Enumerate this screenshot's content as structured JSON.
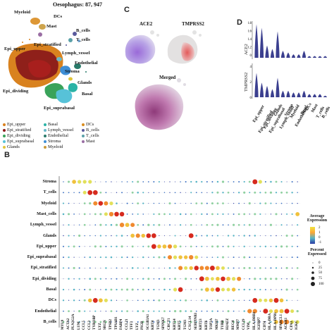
{
  "panel_a": {
    "title": "Oesophagus: 87, 947",
    "cluster_labels": [
      {
        "id": "myeloid",
        "text": "Myeloid",
        "color": "#c99a3a"
      },
      {
        "id": "dcs",
        "text": "DCs",
        "color": "#d98c1f"
      },
      {
        "id": "mast",
        "text": "Mast",
        "color": "#9a6ea3"
      },
      {
        "id": "bcells",
        "text": "B_cells",
        "color": "#5a5a9c"
      },
      {
        "id": "tcells",
        "text": "T_cells",
        "color": "#5aa0a8"
      },
      {
        "id": "epi_stratified",
        "text": "Epi_stratified",
        "color": "#8b1a1a"
      },
      {
        "id": "lymph_vessel",
        "text": "Lymph_vessel",
        "color": "#69b7c9"
      },
      {
        "id": "epi_upper",
        "text": "Epi_upper",
        "color": "#d9821f"
      },
      {
        "id": "endothelial",
        "text": "Endothelial",
        "color": "#2a7a6a"
      },
      {
        "id": "stroma",
        "text": "Stroma",
        "color": "#3f8fd6"
      },
      {
        "id": "glands",
        "text": "Glands",
        "color": "#e1c43a"
      },
      {
        "id": "basal",
        "text": "Basal",
        "color": "#2bb3a6"
      },
      {
        "id": "epi_dividing",
        "text": "Epi_dividing",
        "color": "#3aa35a"
      },
      {
        "id": "epi_suprabasal",
        "text": "Epi_suprabasal",
        "color": "#57c2d8"
      }
    ],
    "legend": [
      {
        "text": "Epi_upper",
        "color": "#d9821f"
      },
      {
        "text": "Basal",
        "color": "#2bb3a6"
      },
      {
        "text": "DCs",
        "color": "#d98c1f"
      },
      {
        "text": "Epi_stratified",
        "color": "#8b1a1a"
      },
      {
        "text": "Lymph_vessel",
        "color": "#69b7c9"
      },
      {
        "text": "B_cells",
        "color": "#5a5a9c"
      },
      {
        "text": "Epi_dividing",
        "color": "#3aa35a"
      },
      {
        "text": "Endothelial",
        "color": "#2a7a6a"
      },
      {
        "text": "T_cells",
        "color": "#5aa0a8"
      },
      {
        "text": "Epi_suprabasal",
        "color": "#57c2d8"
      },
      {
        "text": "Stroma",
        "color": "#3f8fd6"
      },
      {
        "text": "Mast",
        "color": "#9a6ea3"
      },
      {
        "text": "Glands",
        "color": "#e1c43a"
      },
      {
        "text": "Myeloid",
        "color": "#c99a3a"
      }
    ]
  },
  "panel_c": {
    "letter": "C",
    "title_ace2": "ACE2",
    "title_tmprss2": "TMPRSS2",
    "title_merged": "Merged"
  },
  "panel_d": {
    "letter": "D",
    "row_labels": [
      "ACE2",
      "TMPRSS2"
    ],
    "ace2_ticks": [
      "0.8",
      "0.6",
      "0.4",
      "0.2",
      "0"
    ],
    "tmprss2_ticks": [
      "4",
      "2",
      "0"
    ],
    "categories": [
      "Epi_upper",
      "Epi_stratified",
      "Epi_dividing",
      "Epi_suprabasal",
      "Glands",
      "Lymph_vessel",
      "Stroma",
      "Myeloid",
      "Endothelial",
      "Basal",
      "DCs",
      "Mast",
      "T_cells",
      "B_cells"
    ],
    "ace2_heights": [
      0.95,
      0.85,
      0.35,
      0.25,
      0.75,
      0.2,
      0.15,
      0.1,
      0.1,
      0.2,
      0.05,
      0.05,
      0.05,
      0.05
    ],
    "tmprss2_heights": [
      0.75,
      0.45,
      0.35,
      0.25,
      0.6,
      0.2,
      0.2,
      0.15,
      0.15,
      0.2,
      0.1,
      0.1,
      0.1,
      0.05
    ],
    "color": "#3b3f8f"
  },
  "panel_b": {
    "letter": "B",
    "legend_avg_title": "Average\nExpression",
    "legend_avg_ticks": [
      "2",
      "1",
      "0",
      "-1"
    ],
    "legend_pct_title": "Percent\nExpressed",
    "legend_pct_ticks": [
      "0",
      "25",
      "50",
      "75",
      "100"
    ]
  },
  "chart_data": {
    "type": "dotplot",
    "rows": [
      "Stroma",
      "T_cells",
      "Myeloid",
      "Mast_cells",
      "Lymph_vessel",
      "Glands",
      "Epi_upper",
      "Epi_suprabasal",
      "Epi_stratified",
      "Epi_dividing",
      "Basal",
      "DCs",
      "Endothelial",
      "B_cells"
    ],
    "genes": [
      "MYL9",
      "ACTA2",
      "PLN2G2A",
      "LUM",
      "CCL5",
      "CCL3",
      "TYROBP",
      "LYZ",
      "SRGN",
      "TPSB2",
      "TPSAB1",
      "FABP4",
      "CCL21",
      "TFF3",
      "LYZ",
      "PIGR",
      "SCGB3A1",
      "KRT4",
      "TGM3",
      "SPINK7",
      "CRCT1",
      "KRT14",
      "KRT5",
      "TGM1",
      "CXCL14",
      "SERPINB3",
      "KRT13",
      "KRT6",
      "TOP2A",
      "MKI67",
      "TUBB",
      "H2AFZ",
      "REG4",
      "MMP7",
      "CCL19",
      "VIM",
      "HLA-DRB1",
      "IGFBP7",
      "CD74",
      "HLA-DRA",
      "HLA-DPB1",
      "SPARCL1",
      "ACKR1",
      "CPA3",
      "IGKC"
    ],
    "avg_range": [
      -1,
      2
    ],
    "pct_range": [
      0,
      100
    ]
  }
}
